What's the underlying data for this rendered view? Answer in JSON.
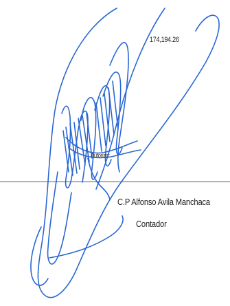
{
  "document": {
    "amount": "174,194.26",
    "authorized_label": "Autorizo:",
    "signer_name": "C.P Alfonso Avila Manchaca",
    "signer_title": "Contador"
  },
  "colors": {
    "ink": "#1f5fd0",
    "text": "#222222",
    "line": "#555555"
  }
}
